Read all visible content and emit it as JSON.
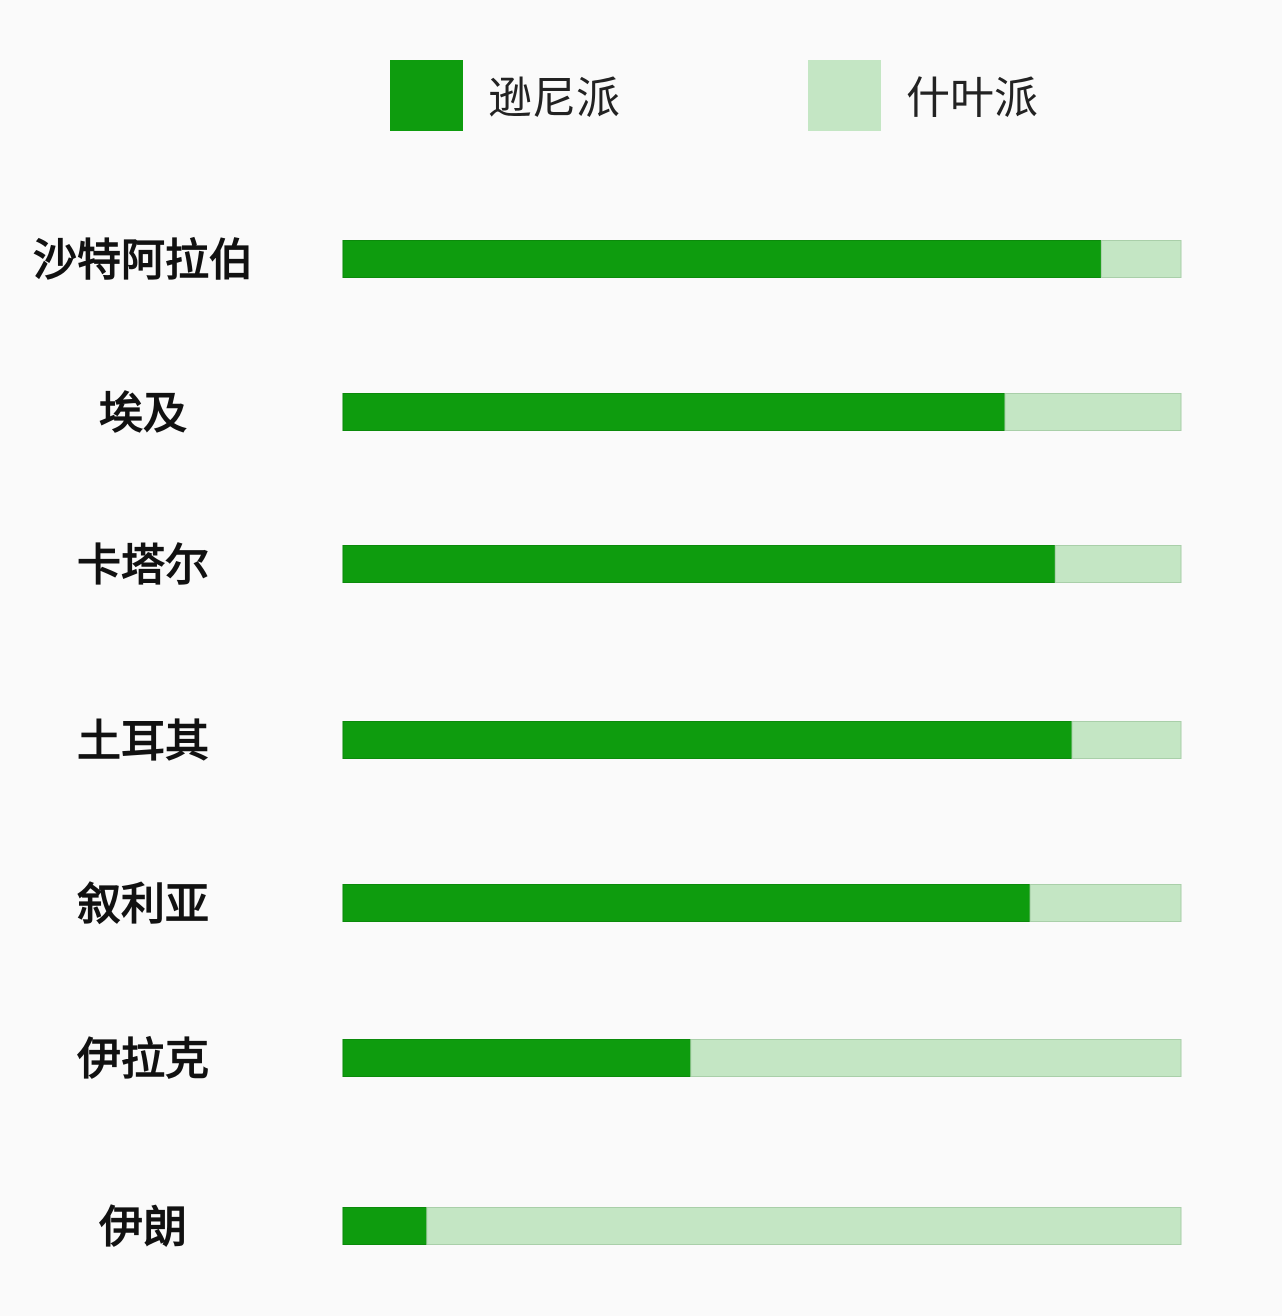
{
  "chart_data": {
    "type": "bar",
    "orientation": "horizontal",
    "stacked": true,
    "normalized_percent": true,
    "categories": [
      "沙特阿拉伯",
      "埃及",
      "卡塔尔",
      "土耳其",
      "叙利亚",
      "伊拉克",
      "伊朗"
    ],
    "series": [
      {
        "name": "逊尼派",
        "color": "#0e9c0e",
        "values": [
          90.5,
          79,
          85,
          87,
          82,
          41.5,
          10
        ]
      },
      {
        "name": "什叶派",
        "color": "#c4e6c4",
        "values": [
          9.5,
          21,
          15,
          13,
          18,
          58.5,
          90
        ]
      }
    ],
    "xlim": [
      0,
      100
    ],
    "grid": false,
    "legend": "top"
  }
}
